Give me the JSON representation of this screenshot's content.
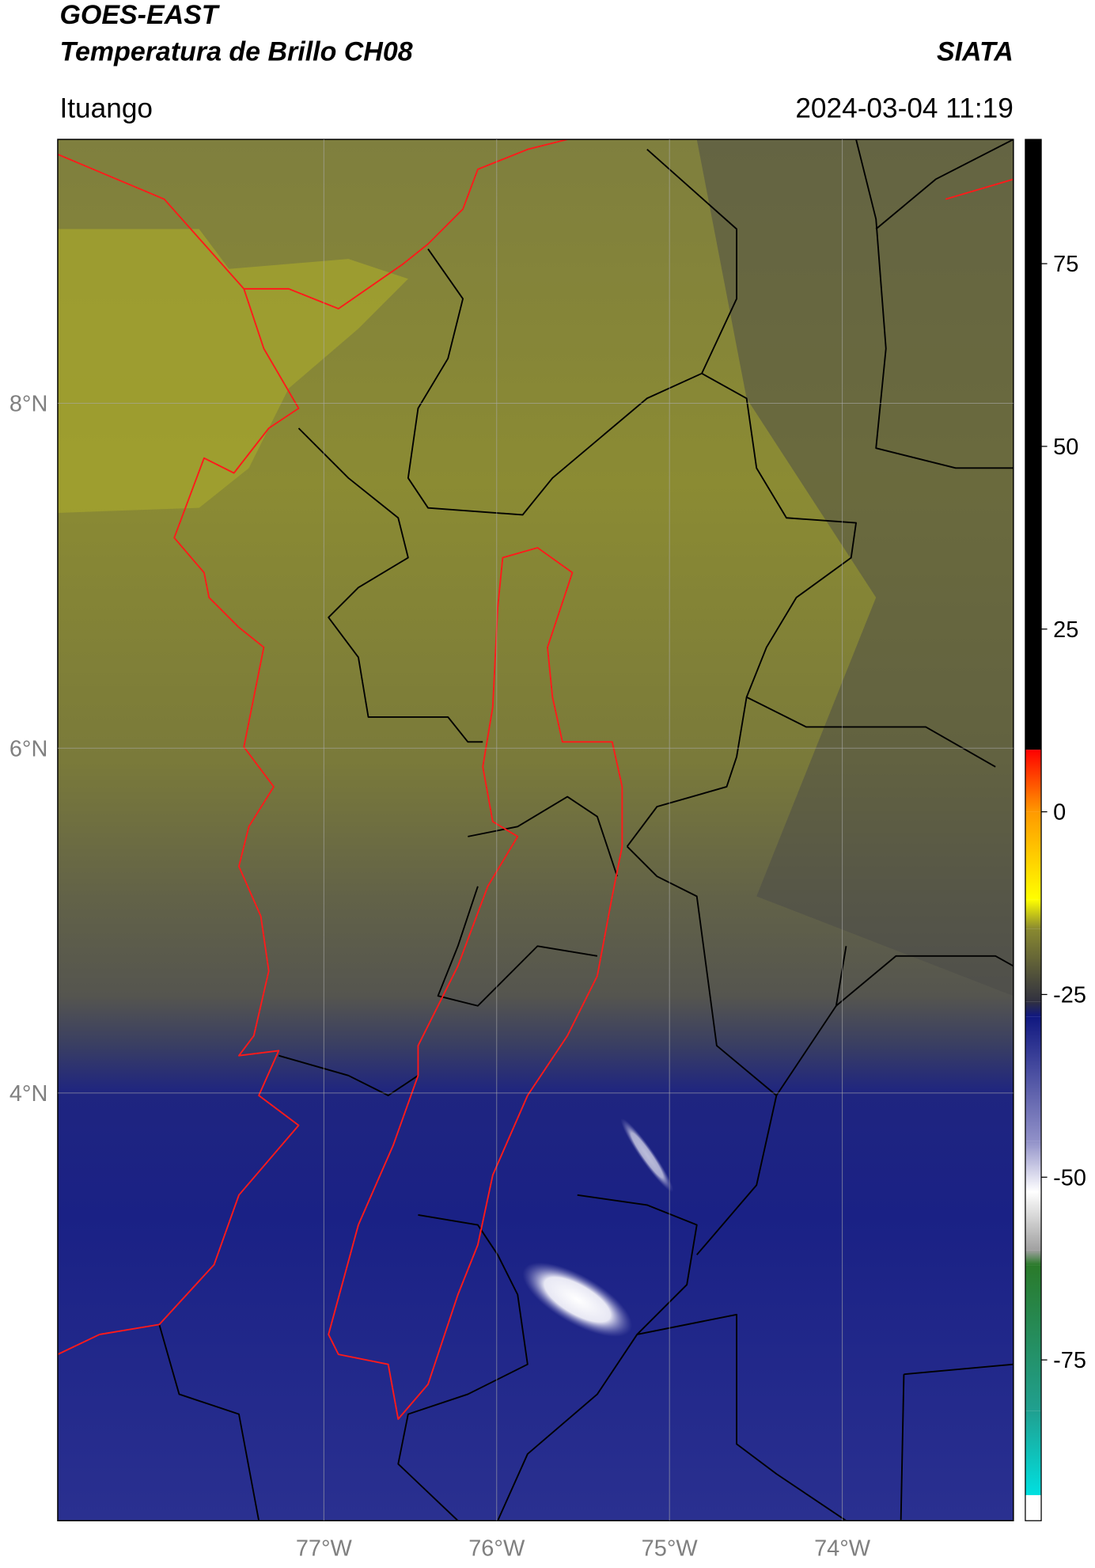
{
  "header": {
    "satellite": "GOES-EAST",
    "product": "Temperatura de Brillo CH08",
    "source": "SIATA",
    "location": "Ituango",
    "datetime": "2024-03-04 11:19"
  },
  "chart_data": {
    "type": "map",
    "xlim": [
      -78.54,
      -73.01
    ],
    "ylim": [
      1.52,
      9.53
    ],
    "xticks": [
      {
        "value": -77,
        "label": "77°W"
      },
      {
        "value": -76,
        "label": "76°W"
      },
      {
        "value": -75,
        "label": "75°W"
      },
      {
        "value": -74,
        "label": "74°W"
      }
    ],
    "yticks": [
      {
        "value": 8,
        "label": "8°N"
      },
      {
        "value": 6,
        "label": "6°N"
      },
      {
        "value": 4,
        "label": "4°N"
      }
    ],
    "grid": true,
    "colorbar": {
      "clim": [
        -97,
        92
      ],
      "ticks": [
        75,
        50,
        25,
        0,
        -25,
        -50,
        -75
      ],
      "stops": [
        {
          "value": -97,
          "color": "#ffffff"
        },
        {
          "value": -93.5,
          "color": "#ffffff"
        },
        {
          "value": -93.5,
          "color": "#00e0e0"
        },
        {
          "value": -82,
          "color": "#20a090"
        },
        {
          "value": -62,
          "color": "#2a7a2a"
        },
        {
          "value": -60,
          "color": "#a0a0a0"
        },
        {
          "value": -52,
          "color": "#ffffff"
        },
        {
          "value": -45,
          "color": "#9090c8"
        },
        {
          "value": -28,
          "color": "#101880"
        },
        {
          "value": -26,
          "color": "#303040"
        },
        {
          "value": -16,
          "color": "#8a8a30"
        },
        {
          "value": -12,
          "color": "#ffff00"
        },
        {
          "value": 0,
          "color": "#ff9900"
        },
        {
          "value": 8.5,
          "color": "#ff0000"
        },
        {
          "value": 8.5,
          "color": "#000000"
        },
        {
          "value": 92,
          "color": "#000000"
        }
      ]
    }
  }
}
